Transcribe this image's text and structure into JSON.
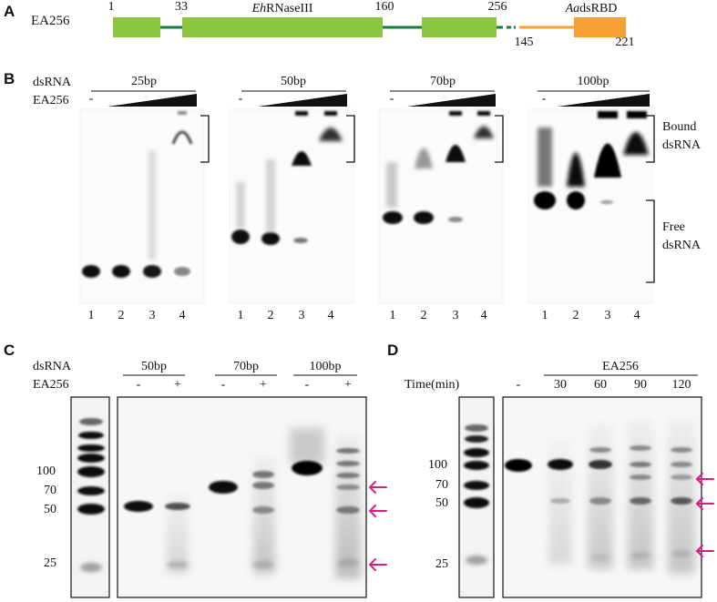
{
  "panelA": {
    "letter": "A",
    "construct": "EA256",
    "domain_italic": "Eh",
    "domain_rest": "RNaseIII",
    "dsrbd_italic": "Aa",
    "dsrbd_rest": "dsRBD",
    "pos_1": "1",
    "pos_33": "33",
    "pos_160": "160",
    "pos_256": "256",
    "pos_145": "145",
    "pos_221": "221",
    "colors": {
      "green_block": "#8cc63f",
      "green_line": "#1a7a3c",
      "orange": "#f7a035"
    }
  },
  "panelB": {
    "letter": "B",
    "row_dsrna": "dsRNA",
    "row_protein": "EA256",
    "minus": "-",
    "gels": [
      {
        "label": "25bp",
        "lanes": [
          "1",
          "2",
          "3",
          "4"
        ]
      },
      {
        "label": "50bp",
        "lanes": [
          "1",
          "2",
          "3",
          "4"
        ]
      },
      {
        "label": "70bp",
        "lanes": [
          "1",
          "2",
          "3",
          "4"
        ]
      },
      {
        "label": "100bp",
        "lanes": [
          "1",
          "2",
          "3",
          "4"
        ]
      }
    ],
    "bound_line1": "Bound",
    "bound_line2": "dsRNA",
    "free_line1": "Free",
    "free_line2": "dsRNA"
  },
  "panelC": {
    "letter": "C",
    "row_dsrna": "dsRNA",
    "row_protein": "EA256",
    "groups": [
      "50bp",
      "70bp",
      "100bp"
    ],
    "signs": [
      "-",
      "+",
      "-",
      "+",
      "-",
      "+"
    ],
    "ladder": [
      "100",
      "70",
      "50",
      "25"
    ]
  },
  "panelD": {
    "letter": "D",
    "header": "EA256",
    "row_time": "Time(min)",
    "times": [
      "-",
      "30",
      "60",
      "90",
      "120"
    ],
    "ladder": [
      "100",
      "70",
      "50",
      "25"
    ]
  },
  "arrow_color": "#d6207f"
}
